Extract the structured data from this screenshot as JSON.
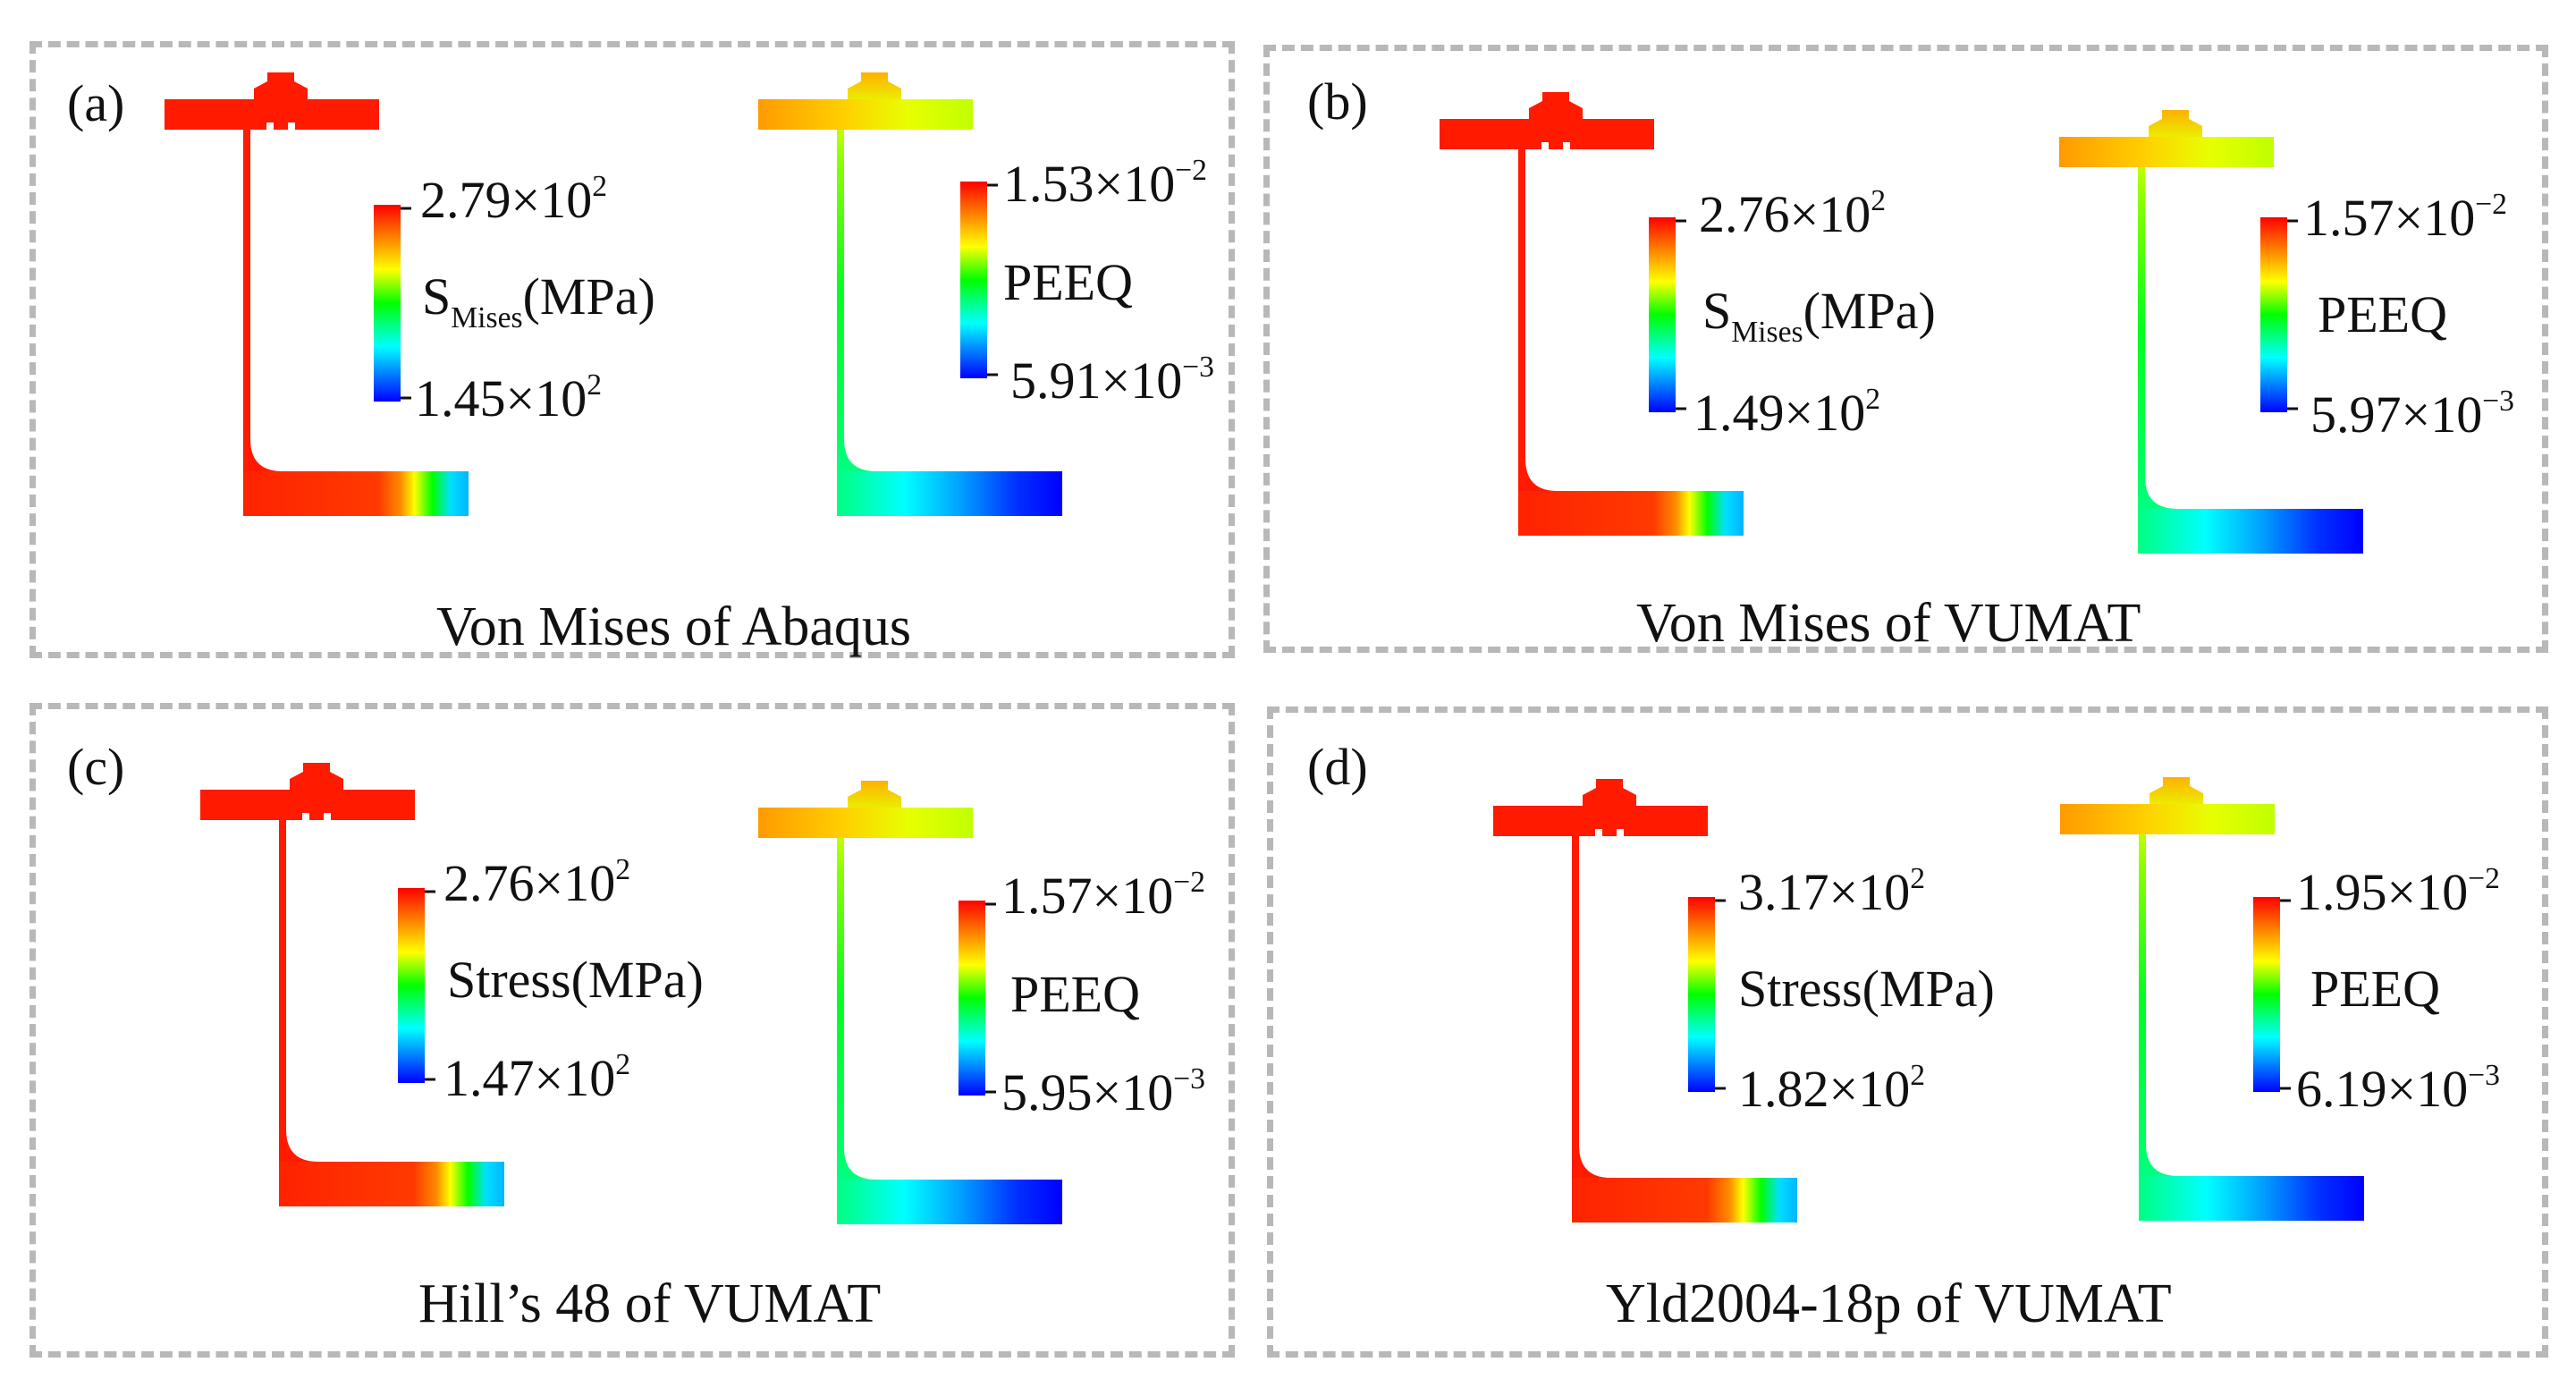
{
  "colors": {
    "border": "#b8b8b8",
    "red": "#ff0000",
    "orange": "#ff8c00",
    "yellow": "#ffff00",
    "green": "#00ff00",
    "cyan": "#00ffff",
    "blue": "#0000ff"
  },
  "panels": [
    {
      "id": "a",
      "label": "(a)",
      "caption": "Von Mises of Abaqus",
      "stress": {
        "max_base": "2.79×10",
        "max_exp": "2",
        "name": "S",
        "name_sub": "Mises",
        "name_unit": "(MPa)",
        "min_base": "1.45×10",
        "min_exp": "2"
      },
      "peeq": {
        "max_base": "1.53×10",
        "max_exp": "−2",
        "name": "PEEQ",
        "min_base": "5.91×10",
        "min_exp": "−3"
      }
    },
    {
      "id": "b",
      "label": "(b)",
      "caption": "Von Mises of VUMAT",
      "stress": {
        "max_base": "2.76×10",
        "max_exp": "2",
        "name": "S",
        "name_sub": "Mises",
        "name_unit": "(MPa)",
        "min_base": "1.49×10",
        "min_exp": "2"
      },
      "peeq": {
        "max_base": "1.57×10",
        "max_exp": "−2",
        "name": "PEEQ",
        "min_base": "5.97×10",
        "min_exp": "−3"
      }
    },
    {
      "id": "c",
      "label": "(c)",
      "caption": "Hill’s 48 of VUMAT",
      "stress": {
        "max_base": "2.76×10",
        "max_exp": "2",
        "name": "Stress(MPa)",
        "min_base": "1.47×10",
        "min_exp": "2"
      },
      "peeq": {
        "max_base": "1.57×10",
        "max_exp": "−2",
        "name": "PEEQ",
        "min_base": "5.95×10",
        "min_exp": "−3"
      }
    },
    {
      "id": "d",
      "label": "(d)",
      "caption": "Yld2004-18p of VUMAT",
      "stress": {
        "max_base": "3.17×10",
        "max_exp": "2",
        "name": "Stress(MPa)",
        "min_base": "1.82×10",
        "min_exp": "2"
      },
      "peeq": {
        "max_base": "1.95×10",
        "max_exp": "−2",
        "name": "PEEQ",
        "min_base": "6.19×10",
        "min_exp": "−3"
      }
    }
  ]
}
